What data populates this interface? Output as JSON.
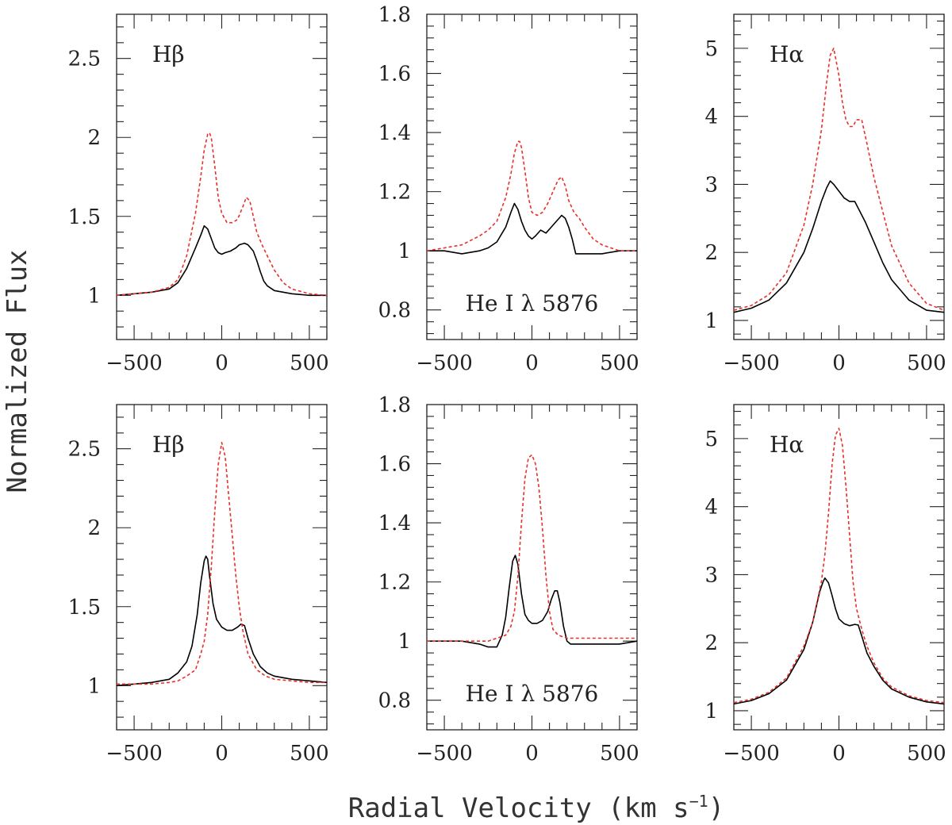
{
  "figure": {
    "ylabel": "Normalized Flux",
    "xlabel": "Radial Velocity (km s",
    "xlabel_sup": "−1",
    "xlabel_close": ")"
  },
  "colors": {
    "observed": "#000000",
    "model": "#e8302a"
  },
  "chart_data": [
    {
      "type": "line",
      "row": 0,
      "col": 0,
      "annotation": "Hβ",
      "annotation_position": "top-left",
      "xlim": [
        -600,
        600
      ],
      "ylim": [
        0.72,
        2.78
      ],
      "xticks": [
        -500,
        0,
        500
      ],
      "xtick_labels": [
        "−500",
        "0",
        "500"
      ],
      "yticks": [
        1,
        1.5,
        2,
        2.5
      ],
      "ytick_labels": [
        "1",
        "1.5",
        "2",
        "2.5"
      ],
      "series": [
        {
          "style": "solid",
          "color": "#000000",
          "x": [
            -600,
            -500,
            -400,
            -300,
            -250,
            -200,
            -150,
            -120,
            -100,
            -80,
            -60,
            -40,
            -20,
            0,
            20,
            50,
            80,
            100,
            130,
            150,
            180,
            200,
            220,
            240,
            260,
            300,
            350,
            400,
            500,
            600
          ],
          "y": [
            1.0,
            1.01,
            1.02,
            1.04,
            1.08,
            1.17,
            1.3,
            1.38,
            1.44,
            1.42,
            1.36,
            1.3,
            1.27,
            1.26,
            1.27,
            1.28,
            1.3,
            1.32,
            1.33,
            1.32,
            1.28,
            1.22,
            1.15,
            1.09,
            1.06,
            1.03,
            1.02,
            1.01,
            1.0,
            1.0
          ]
        },
        {
          "style": "dashed",
          "color": "#e8302a",
          "x": [
            -600,
            -500,
            -400,
            -300,
            -250,
            -200,
            -150,
            -120,
            -100,
            -80,
            -70,
            -60,
            -40,
            -20,
            0,
            30,
            60,
            90,
            120,
            140,
            160,
            180,
            200,
            230,
            260,
            300,
            350,
            400,
            500,
            600
          ],
          "y": [
            1.0,
            1.01,
            1.02,
            1.05,
            1.1,
            1.25,
            1.52,
            1.75,
            1.92,
            2.02,
            2.03,
            2.0,
            1.82,
            1.62,
            1.52,
            1.46,
            1.46,
            1.48,
            1.56,
            1.62,
            1.6,
            1.5,
            1.4,
            1.32,
            1.25,
            1.16,
            1.08,
            1.04,
            1.01,
            1.0
          ]
        }
      ]
    },
    {
      "type": "line",
      "row": 0,
      "col": 1,
      "annotation": "He I λ 5876",
      "annotation_position": "bottom-center",
      "xlim": [
        -600,
        600
      ],
      "ylim": [
        0.7,
        1.8
      ],
      "xticks": [
        -500,
        0,
        500
      ],
      "xtick_labels": [
        "−500",
        "0",
        "500"
      ],
      "yticks": [
        0.8,
        1,
        1.2,
        1.4,
        1.6,
        1.8
      ],
      "ytick_labels": [
        "0.8",
        "1",
        "1.2",
        "1.4",
        "1.6",
        "1.8"
      ],
      "series": [
        {
          "style": "solid",
          "color": "#000000",
          "x": [
            -600,
            -500,
            -400,
            -300,
            -250,
            -200,
            -150,
            -120,
            -100,
            -80,
            -60,
            -40,
            -20,
            0,
            20,
            50,
            80,
            110,
            140,
            170,
            190,
            210,
            230,
            250,
            270,
            300,
            400,
            500,
            600
          ],
          "y": [
            1.0,
            1.0,
            0.99,
            1.0,
            1.01,
            1.03,
            1.08,
            1.13,
            1.16,
            1.14,
            1.1,
            1.07,
            1.05,
            1.04,
            1.05,
            1.07,
            1.06,
            1.08,
            1.1,
            1.12,
            1.11,
            1.08,
            1.04,
            0.99,
            0.99,
            0.99,
            0.99,
            1.0,
            1.0
          ]
        },
        {
          "style": "dashed",
          "color": "#e8302a",
          "x": [
            -600,
            -500,
            -400,
            -300,
            -250,
            -200,
            -150,
            -120,
            -100,
            -80,
            -70,
            -60,
            -40,
            -20,
            0,
            30,
            60,
            90,
            120,
            150,
            170,
            190,
            210,
            240,
            270,
            300,
            350,
            400,
            500,
            600
          ],
          "y": [
            1.0,
            1.01,
            1.02,
            1.05,
            1.07,
            1.1,
            1.18,
            1.26,
            1.33,
            1.37,
            1.37,
            1.35,
            1.27,
            1.18,
            1.13,
            1.12,
            1.13,
            1.16,
            1.2,
            1.24,
            1.25,
            1.22,
            1.17,
            1.13,
            1.11,
            1.08,
            1.04,
            1.02,
            1.0,
            1.0
          ]
        }
      ]
    },
    {
      "type": "line",
      "row": 0,
      "col": 2,
      "annotation": "Hα",
      "annotation_position": "top-left",
      "xlim": [
        -600,
        600
      ],
      "ylim": [
        0.72,
        5.5
      ],
      "xticks": [
        -500,
        0,
        500
      ],
      "xtick_labels": [
        "−500",
        "0",
        "500"
      ],
      "yticks": [
        1,
        2,
        3,
        4,
        5
      ],
      "ytick_labels": [
        "1",
        "2",
        "3",
        "4",
        "5"
      ],
      "series": [
        {
          "style": "solid",
          "color": "#000000",
          "x": [
            -600,
            -500,
            -400,
            -300,
            -200,
            -150,
            -100,
            -70,
            -50,
            -30,
            0,
            30,
            60,
            90,
            120,
            150,
            200,
            250,
            300,
            400,
            500,
            600
          ],
          "y": [
            1.12,
            1.18,
            1.3,
            1.55,
            2.0,
            2.35,
            2.75,
            2.95,
            3.05,
            3.0,
            2.9,
            2.8,
            2.75,
            2.75,
            2.6,
            2.45,
            2.15,
            1.85,
            1.6,
            1.3,
            1.15,
            1.12
          ]
        },
        {
          "style": "dashed",
          "color": "#e8302a",
          "x": [
            -600,
            -500,
            -400,
            -300,
            -200,
            -150,
            -100,
            -70,
            -50,
            -30,
            0,
            20,
            40,
            60,
            80,
            100,
            130,
            160,
            200,
            250,
            300,
            400,
            500,
            600
          ],
          "y": [
            1.15,
            1.22,
            1.38,
            1.7,
            2.4,
            3.0,
            3.8,
            4.5,
            4.9,
            5.0,
            4.6,
            4.2,
            3.95,
            3.85,
            3.85,
            3.95,
            3.95,
            3.6,
            3.1,
            2.6,
            2.1,
            1.55,
            1.25,
            1.15
          ]
        }
      ]
    },
    {
      "type": "line",
      "row": 1,
      "col": 0,
      "annotation": "Hβ",
      "annotation_position": "top-left",
      "xlim": [
        -600,
        600
      ],
      "ylim": [
        0.72,
        2.78
      ],
      "xticks": [
        -500,
        0,
        500
      ],
      "xtick_labels": [
        "−500",
        "0",
        "500"
      ],
      "yticks": [
        1,
        1.5,
        2,
        2.5
      ],
      "ytick_labels": [
        "1",
        "1.5",
        "2",
        "2.5"
      ],
      "series": [
        {
          "style": "solid",
          "color": "#000000",
          "x": [
            -600,
            -500,
            -400,
            -300,
            -250,
            -200,
            -170,
            -140,
            -120,
            -100,
            -90,
            -80,
            -70,
            -50,
            -30,
            0,
            30,
            60,
            90,
            110,
            130,
            150,
            180,
            220,
            260,
            300,
            400,
            500,
            600
          ],
          "y": [
            1.0,
            1.01,
            1.02,
            1.04,
            1.08,
            1.15,
            1.25,
            1.45,
            1.65,
            1.79,
            1.82,
            1.8,
            1.7,
            1.52,
            1.42,
            1.37,
            1.35,
            1.35,
            1.37,
            1.39,
            1.38,
            1.3,
            1.2,
            1.12,
            1.08,
            1.06,
            1.04,
            1.03,
            1.02
          ]
        },
        {
          "style": "dashed",
          "color": "#e8302a",
          "x": [
            -600,
            -500,
            -400,
            -300,
            -250,
            -200,
            -150,
            -120,
            -100,
            -80,
            -60,
            -40,
            -20,
            0,
            20,
            40,
            60,
            80,
            100,
            120,
            150,
            200,
            250,
            300,
            400,
            500,
            600
          ],
          "y": [
            1.01,
            1.01,
            1.01,
            1.02,
            1.03,
            1.06,
            1.1,
            1.2,
            1.28,
            1.45,
            1.75,
            2.1,
            2.4,
            2.54,
            2.45,
            2.2,
            1.95,
            1.7,
            1.5,
            1.35,
            1.2,
            1.1,
            1.06,
            1.04,
            1.03,
            1.02,
            1.02
          ]
        }
      ]
    },
    {
      "type": "line",
      "row": 1,
      "col": 1,
      "annotation": "He I λ 5876",
      "annotation_position": "bottom-center",
      "xlim": [
        -600,
        600
      ],
      "ylim": [
        0.7,
        1.8
      ],
      "xticks": [
        -500,
        0,
        500
      ],
      "xtick_labels": [
        "−500",
        "0",
        "500"
      ],
      "yticks": [
        0.8,
        1,
        1.2,
        1.4,
        1.6,
        1.8
      ],
      "ytick_labels": [
        "0.8",
        "1",
        "1.2",
        "1.4",
        "1.6",
        "1.8"
      ],
      "series": [
        {
          "style": "solid",
          "color": "#000000",
          "x": [
            -600,
            -500,
            -400,
            -300,
            -250,
            -200,
            -170,
            -150,
            -130,
            -110,
            -95,
            -80,
            -60,
            -40,
            -20,
            0,
            30,
            60,
            90,
            110,
            130,
            145,
            160,
            180,
            200,
            220,
            260,
            300,
            400,
            500,
            600
          ],
          "y": [
            1.0,
            1.0,
            1.0,
            0.99,
            0.98,
            0.98,
            1.02,
            1.08,
            1.18,
            1.27,
            1.29,
            1.26,
            1.16,
            1.09,
            1.07,
            1.06,
            1.06,
            1.07,
            1.1,
            1.14,
            1.17,
            1.17,
            1.13,
            1.05,
            1.0,
            0.99,
            0.99,
            0.99,
            0.99,
            0.99,
            1.0
          ]
        },
        {
          "style": "dashed",
          "color": "#e8302a",
          "x": [
            -600,
            -500,
            -400,
            -300,
            -250,
            -200,
            -150,
            -120,
            -100,
            -80,
            -60,
            -40,
            -20,
            0,
            20,
            40,
            60,
            80,
            100,
            120,
            150,
            200,
            300,
            400,
            500,
            600
          ],
          "y": [
            1.0,
            1.0,
            1.0,
            1.0,
            1.0,
            1.01,
            1.02,
            1.05,
            1.1,
            1.22,
            1.4,
            1.55,
            1.62,
            1.63,
            1.6,
            1.52,
            1.38,
            1.22,
            1.1,
            1.04,
            1.02,
            1.01,
            1.01,
            1.01,
            1.01,
            1.01
          ]
        }
      ]
    },
    {
      "type": "line",
      "row": 1,
      "col": 2,
      "annotation": "Hα",
      "annotation_position": "top-left",
      "xlim": [
        -600,
        600
      ],
      "ylim": [
        0.72,
        5.5
      ],
      "xticks": [
        -500,
        0,
        500
      ],
      "xtick_labels": [
        "−500",
        "0",
        "500"
      ],
      "yticks": [
        1,
        2,
        3,
        4,
        5
      ],
      "ytick_labels": [
        "1",
        "2",
        "3",
        "4",
        "5"
      ],
      "series": [
        {
          "style": "solid",
          "color": "#000000",
          "x": [
            -600,
            -500,
            -400,
            -300,
            -200,
            -150,
            -110,
            -90,
            -80,
            -60,
            -40,
            -20,
            0,
            30,
            60,
            90,
            110,
            130,
            160,
            200,
            250,
            300,
            400,
            500,
            600
          ],
          "y": [
            1.1,
            1.15,
            1.25,
            1.45,
            1.9,
            2.3,
            2.75,
            2.9,
            2.95,
            2.88,
            2.7,
            2.5,
            2.35,
            2.28,
            2.25,
            2.27,
            2.26,
            2.1,
            1.85,
            1.65,
            1.45,
            1.32,
            1.2,
            1.13,
            1.1
          ]
        },
        {
          "style": "dashed",
          "color": "#e8302a",
          "x": [
            -600,
            -500,
            -400,
            -300,
            -200,
            -150,
            -100,
            -80,
            -60,
            -40,
            -20,
            0,
            20,
            40,
            60,
            80,
            100,
            130,
            160,
            200,
            250,
            300,
            400,
            500,
            600
          ],
          "y": [
            1.12,
            1.17,
            1.27,
            1.48,
            1.95,
            2.3,
            2.9,
            3.3,
            3.9,
            4.6,
            5.05,
            5.15,
            4.9,
            4.3,
            3.6,
            2.9,
            2.5,
            2.2,
            1.95,
            1.7,
            1.48,
            1.35,
            1.22,
            1.15,
            1.12
          ]
        }
      ]
    }
  ]
}
